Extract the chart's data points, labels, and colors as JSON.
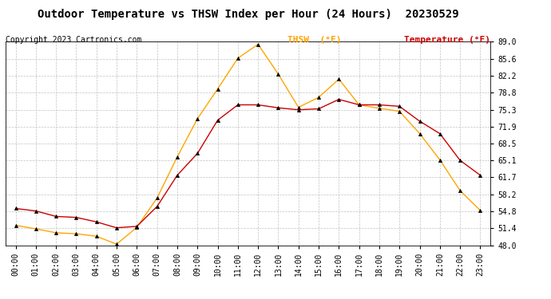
{
  "title": "Outdoor Temperature vs THSW Index per Hour (24 Hours)  20230529",
  "copyright": "Copyright 2023 Cartronics.com",
  "legend_thsw": "THSW  (°F)",
  "legend_temp": "Temperature (°F)",
  "hours": [
    "00:00",
    "01:00",
    "02:00",
    "03:00",
    "04:00",
    "05:00",
    "06:00",
    "07:00",
    "08:00",
    "09:00",
    "10:00",
    "11:00",
    "12:00",
    "13:00",
    "14:00",
    "15:00",
    "16:00",
    "17:00",
    "18:00",
    "19:00",
    "20:00",
    "21:00",
    "22:00",
    "23:00"
  ],
  "temperature": [
    55.4,
    54.9,
    53.8,
    53.6,
    52.7,
    51.5,
    51.8,
    55.8,
    62.1,
    66.5,
    73.2,
    76.3,
    76.3,
    75.7,
    75.3,
    75.5,
    77.4,
    76.3,
    76.3,
    76.0,
    73.0,
    70.5,
    65.1,
    62.1
  ],
  "thsw": [
    52.0,
    51.3,
    50.5,
    50.3,
    49.8,
    48.2,
    51.6,
    57.5,
    65.8,
    73.5,
    79.5,
    85.7,
    88.5,
    82.5,
    75.8,
    77.8,
    81.5,
    76.3,
    75.6,
    75.0,
    70.5,
    65.2,
    59.0,
    55.0
  ],
  "ylim": [
    48.0,
    89.0
  ],
  "yticks": [
    48.0,
    51.4,
    54.8,
    58.2,
    61.7,
    65.1,
    68.5,
    71.9,
    75.3,
    78.8,
    82.2,
    85.6,
    89.0
  ],
  "color_thsw": "#FFA500",
  "color_temp": "#CC0000",
  "color_marker": "#000000",
  "background_color": "#ffffff",
  "grid_color": "#bbbbbb",
  "title_fontsize": 10,
  "copyright_fontsize": 7,
  "legend_fontsize": 8,
  "tick_fontsize": 7,
  "marker_size": 3
}
